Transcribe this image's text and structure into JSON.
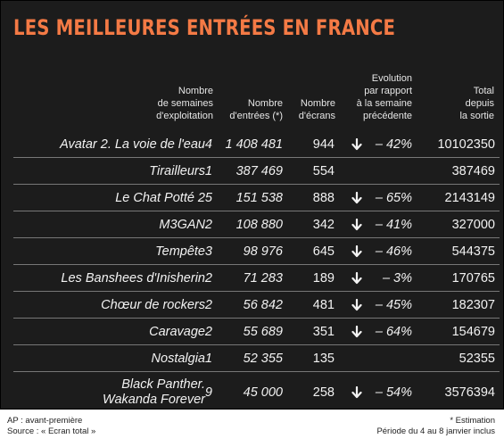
{
  "chart_data": {
    "type": "table",
    "title": "LES MEILLEURES ENTRÉES EN FRANCE",
    "columns": [
      "Nombre\nde semaines\nd'exploitation",
      "Nombre\nd'entrées (*)",
      "Nombre\nd'écrans",
      "Evolution\npar rapport\nà la semaine\nprécédente",
      "Total\ndepuis\nla sortie"
    ],
    "rows": [
      {
        "film": "Avatar 2. La voie de l'eau",
        "weeks": "4",
        "entries": "1 408 481",
        "screens": "944",
        "trend": "down",
        "evolution": "– 42%",
        "total": "10102350"
      },
      {
        "film": "Tirailleurs",
        "weeks": "1",
        "entries": "387 469",
        "screens": "554",
        "trend": "",
        "evolution": "",
        "total": "387469"
      },
      {
        "film": "Le Chat Potté 2",
        "weeks": "5",
        "entries": "151 538",
        "screens": "888",
        "trend": "down",
        "evolution": "– 65%",
        "total": "2143149"
      },
      {
        "film": "M3GAN",
        "weeks": "2",
        "entries": "108 880",
        "screens": "342",
        "trend": "down",
        "evolution": "– 41%",
        "total": "327000"
      },
      {
        "film": "Tempête",
        "weeks": "3",
        "entries": "98 976",
        "screens": "645",
        "trend": "down",
        "evolution": "– 46%",
        "total": "544375"
      },
      {
        "film": "Les Banshees d'Inisherin",
        "weeks": "2",
        "entries": "71 283",
        "screens": "189",
        "trend": "down",
        "evolution": "– 3%",
        "total": "170765"
      },
      {
        "film": "Chœur de rockers",
        "weeks": "2",
        "entries": "56 842",
        "screens": "481",
        "trend": "down",
        "evolution": "– 45%",
        "total": "182307"
      },
      {
        "film": "Caravage",
        "weeks": "2",
        "entries": "55 689",
        "screens": "351",
        "trend": "down",
        "evolution": "– 64%",
        "total": "154679"
      },
      {
        "film": "Nostalgia",
        "weeks": "1",
        "entries": "52 355",
        "screens": "135",
        "trend": "",
        "evolution": "",
        "total": "52355"
      },
      {
        "film": "Black Panther.\nWakanda Forever",
        "weeks": "9",
        "entries": "45 000",
        "screens": "258",
        "trend": "down",
        "evolution": "– 54%",
        "total": "3576394"
      }
    ]
  },
  "footer": {
    "note_ap": "AP : avant-première",
    "source": "Source : « Ecran total »",
    "estimation": "* Estimation",
    "period": "Période du 4 au 8 janvier inclus"
  },
  "colors": {
    "background": "#1c1c1c",
    "title": "#f47a45",
    "text": "#f2f2f2",
    "divider": "#777777"
  }
}
